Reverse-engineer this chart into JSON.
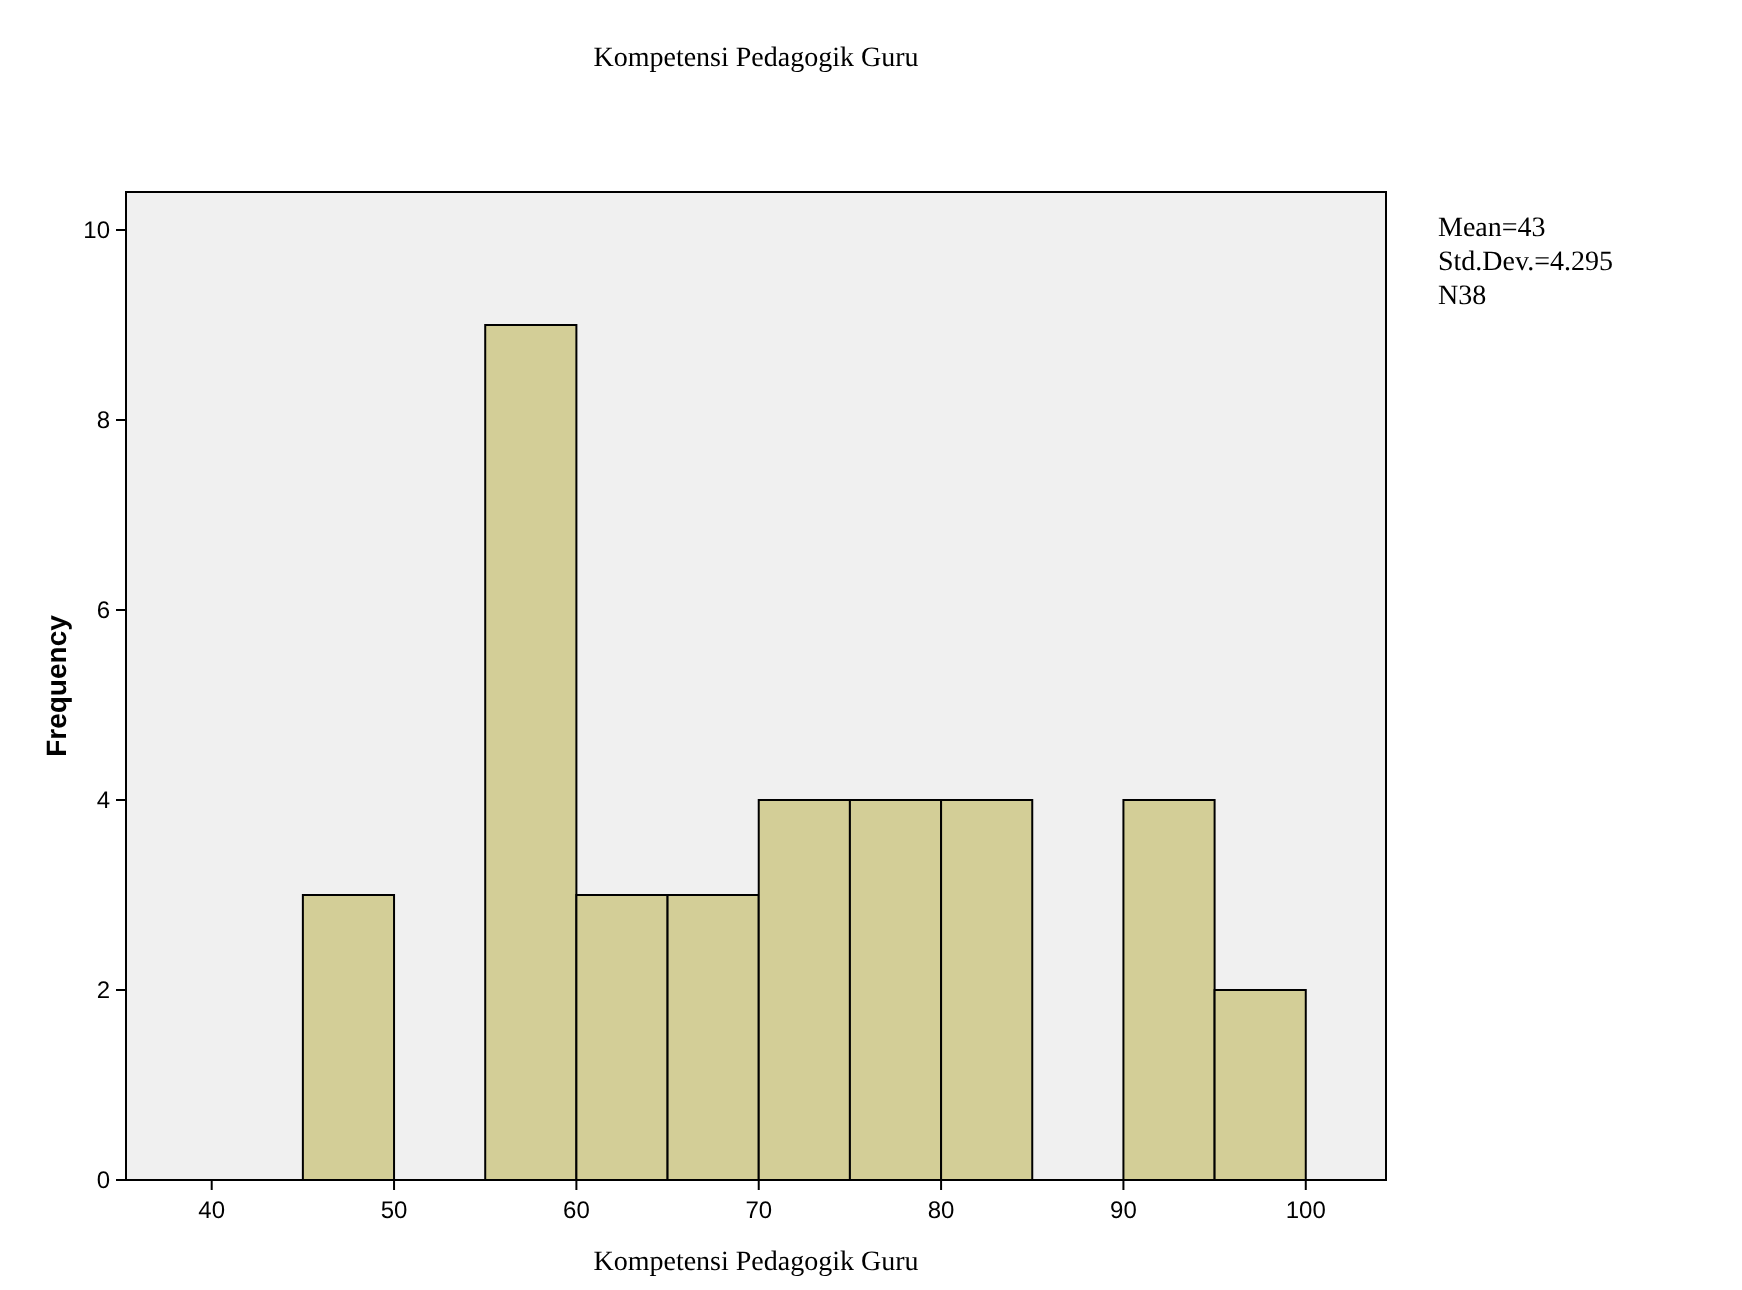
{
  "chart_data": {
    "type": "histogram",
    "title": "Kompetensi Pedagogik Guru",
    "xlabel": "Kompetensi Pedagogik Guru",
    "ylabel": "Frequency",
    "bins": [
      40,
      45,
      50,
      55,
      60,
      65,
      70,
      75,
      80,
      85,
      90,
      95,
      100
    ],
    "values": [
      0,
      3,
      0,
      9,
      3,
      3,
      4,
      4,
      4,
      0,
      4,
      2
    ],
    "color": "#d3ce97",
    "xlim": [
      35.3,
      104.4
    ],
    "xticks": [
      40,
      50,
      60,
      70,
      80,
      90,
      100
    ],
    "ylim": [
      0,
      10.4
    ],
    "yticks": [
      0,
      2,
      4,
      6,
      8,
      10
    ],
    "grid": false,
    "annotations": [
      "Mean=43",
      "Std.Dev.=4.295",
      "N38"
    ]
  }
}
